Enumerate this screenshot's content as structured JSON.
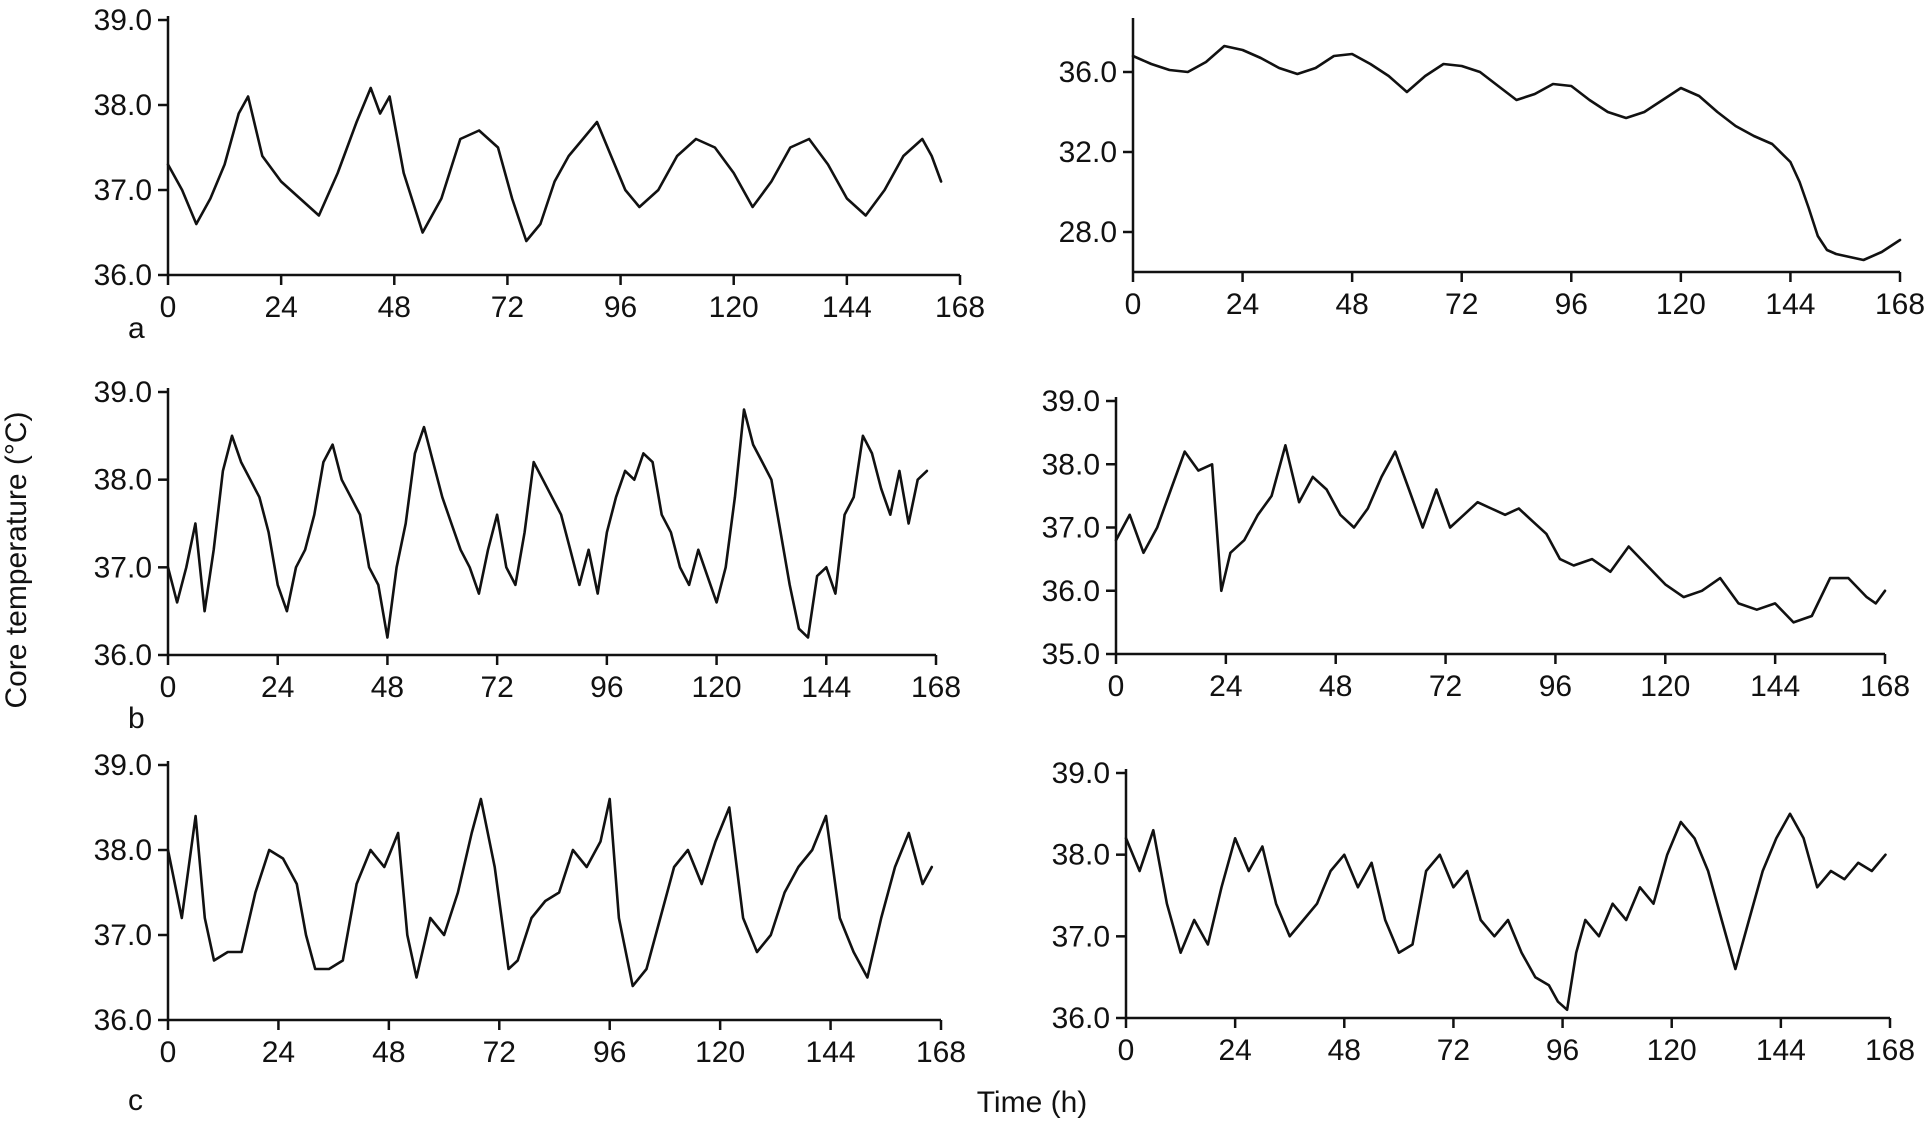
{
  "figure": {
    "ylabel": "Core temperature (°C)",
    "xlabel": "Time (h)",
    "row_labels": [
      "a",
      "b",
      "c"
    ]
  },
  "chart_data": [
    {
      "type": "line",
      "panel": "a-left",
      "xlim": [
        0,
        168
      ],
      "ylim": [
        36.0,
        39.0
      ],
      "xticks": [
        "0",
        "24",
        "48",
        "72",
        "96",
        "120",
        "144",
        "168"
      ],
      "yticks": [
        "36.0",
        "37.0",
        "38.0",
        "39.0"
      ],
      "series": [
        {
          "x": [
            0,
            3,
            6,
            9,
            12,
            15,
            17,
            20,
            24,
            28,
            32,
            36,
            40,
            43,
            45,
            47,
            50,
            54,
            58,
            62,
            66,
            70,
            73,
            76,
            79,
            82,
            85,
            88,
            91,
            94,
            97,
            100,
            104,
            108,
            112,
            116,
            120,
            124,
            128,
            132,
            136,
            140,
            144,
            148,
            152,
            156,
            160,
            162,
            164
          ],
          "y": [
            37.3,
            37.0,
            36.6,
            36.9,
            37.3,
            37.9,
            38.1,
            37.4,
            37.1,
            36.9,
            36.7,
            37.2,
            37.8,
            38.2,
            37.9,
            38.1,
            37.2,
            36.5,
            36.9,
            37.6,
            37.7,
            37.5,
            36.9,
            36.4,
            36.6,
            37.1,
            37.4,
            37.6,
            37.8,
            37.4,
            37.0,
            36.8,
            37.0,
            37.4,
            37.6,
            37.5,
            37.2,
            36.8,
            37.1,
            37.5,
            37.6,
            37.3,
            36.9,
            36.7,
            37.0,
            37.4,
            37.6,
            37.4,
            37.1
          ]
        }
      ]
    },
    {
      "type": "line",
      "panel": "a-right",
      "xlim": [
        0,
        168
      ],
      "ylim": [
        26.0,
        38.5
      ],
      "xticks": [
        "0",
        "24",
        "48",
        "72",
        "96",
        "120",
        "144",
        "168"
      ],
      "yticks": [
        "28.0",
        "32.0",
        "36.0"
      ],
      "series": [
        {
          "x": [
            0,
            4,
            8,
            12,
            16,
            20,
            24,
            28,
            32,
            36,
            40,
            44,
            48,
            52,
            56,
            60,
            64,
            68,
            72,
            76,
            80,
            84,
            88,
            92,
            96,
            100,
            104,
            108,
            112,
            116,
            120,
            124,
            128,
            132,
            136,
            140,
            144,
            146,
            148,
            150,
            152,
            154,
            156,
            160,
            164,
            168
          ],
          "y": [
            36.8,
            36.4,
            36.1,
            36.0,
            36.5,
            37.3,
            37.1,
            36.7,
            36.2,
            35.9,
            36.2,
            36.8,
            36.9,
            36.4,
            35.8,
            35.0,
            35.8,
            36.4,
            36.3,
            36.0,
            35.3,
            34.6,
            34.9,
            35.4,
            35.3,
            34.6,
            34.0,
            33.7,
            34.0,
            34.6,
            35.2,
            34.8,
            34.0,
            33.3,
            32.8,
            32.4,
            31.5,
            30.5,
            29.2,
            27.8,
            27.1,
            26.9,
            26.8,
            26.6,
            27.0,
            27.6
          ]
        }
      ]
    },
    {
      "type": "line",
      "panel": "b-left",
      "xlim": [
        0,
        168
      ],
      "ylim": [
        36.0,
        39.0
      ],
      "xticks": [
        "0",
        "24",
        "48",
        "72",
        "96",
        "120",
        "144",
        "168"
      ],
      "yticks": [
        "36.0",
        "37.0",
        "38.0",
        "39.0"
      ],
      "series": [
        {
          "x": [
            0,
            2,
            4,
            6,
            8,
            10,
            12,
            14,
            16,
            18,
            20,
            22,
            24,
            26,
            28,
            30,
            32,
            34,
            36,
            38,
            40,
            42,
            44,
            46,
            48,
            50,
            52,
            54,
            56,
            58,
            60,
            62,
            64,
            66,
            68,
            70,
            72,
            74,
            76,
            78,
            80,
            82,
            84,
            86,
            88,
            90,
            92,
            94,
            96,
            98,
            100,
            102,
            104,
            106,
            108,
            110,
            112,
            114,
            116,
            118,
            120,
            122,
            124,
            126,
            128,
            130,
            132,
            134,
            136,
            138,
            140,
            142,
            144,
            146,
            148,
            150,
            152,
            154,
            156,
            158,
            160,
            162,
            164,
            166
          ],
          "y": [
            37.0,
            36.6,
            37.0,
            37.5,
            36.5,
            37.2,
            38.1,
            38.5,
            38.2,
            38.0,
            37.8,
            37.4,
            36.8,
            36.5,
            37.0,
            37.2,
            37.6,
            38.2,
            38.4,
            38.0,
            37.8,
            37.6,
            37.0,
            36.8,
            36.2,
            37.0,
            37.5,
            38.3,
            38.6,
            38.2,
            37.8,
            37.5,
            37.2,
            37.0,
            36.7,
            37.2,
            37.6,
            37.0,
            36.8,
            37.4,
            38.2,
            38.0,
            37.8,
            37.6,
            37.2,
            36.8,
            37.2,
            36.7,
            37.4,
            37.8,
            38.1,
            38.0,
            38.3,
            38.2,
            37.6,
            37.4,
            37.0,
            36.8,
            37.2,
            36.9,
            36.6,
            37.0,
            37.8,
            38.8,
            38.4,
            38.2,
            38.0,
            37.4,
            36.8,
            36.3,
            36.2,
            36.9,
            37.0,
            36.7,
            37.6,
            37.8,
            38.5,
            38.3,
            37.9,
            37.6,
            38.1,
            37.5,
            38.0,
            38.1
          ]
        }
      ]
    },
    {
      "type": "line",
      "panel": "b-right",
      "xlim": [
        0,
        168
      ],
      "ylim": [
        35.0,
        39.0
      ],
      "xticks": [
        "0",
        "24",
        "48",
        "72",
        "96",
        "120",
        "144",
        "168"
      ],
      "yticks": [
        "35.0",
        "36.0",
        "37.0",
        "38.0",
        "39.0"
      ],
      "series": [
        {
          "x": [
            0,
            3,
            6,
            9,
            12,
            15,
            18,
            21,
            23,
            25,
            28,
            31,
            34,
            37,
            40,
            43,
            46,
            49,
            52,
            55,
            58,
            61,
            64,
            67,
            70,
            73,
            76,
            79,
            82,
            85,
            88,
            91,
            94,
            97,
            100,
            104,
            108,
            112,
            116,
            120,
            124,
            128,
            132,
            136,
            140,
            144,
            148,
            152,
            156,
            160,
            164,
            166,
            168
          ],
          "y": [
            36.8,
            37.2,
            36.6,
            37.0,
            37.6,
            38.2,
            37.9,
            38.0,
            36.0,
            36.6,
            36.8,
            37.2,
            37.5,
            38.3,
            37.4,
            37.8,
            37.6,
            37.2,
            37.0,
            37.3,
            37.8,
            38.2,
            37.6,
            37.0,
            37.6,
            37.0,
            37.2,
            37.4,
            37.3,
            37.2,
            37.3,
            37.1,
            36.9,
            36.5,
            36.4,
            36.5,
            36.3,
            36.7,
            36.4,
            36.1,
            35.9,
            36.0,
            36.2,
            35.8,
            35.7,
            35.8,
            35.5,
            35.6,
            36.2,
            36.2,
            35.9,
            35.8,
            36.0
          ]
        }
      ]
    },
    {
      "type": "line",
      "panel": "c-left",
      "xlim": [
        0,
        168
      ],
      "ylim": [
        36.0,
        39.0
      ],
      "xticks": [
        "0",
        "24",
        "48",
        "72",
        "96",
        "120",
        "144",
        "168"
      ],
      "yticks": [
        "36.0",
        "37.0",
        "38.0",
        "39.0"
      ],
      "series": [
        {
          "x": [
            0,
            3,
            6,
            8,
            10,
            13,
            16,
            19,
            22,
            25,
            28,
            30,
            32,
            35,
            38,
            41,
            44,
            47,
            50,
            52,
            54,
            57,
            60,
            63,
            66,
            68,
            71,
            74,
            76,
            79,
            82,
            85,
            88,
            91,
            94,
            96,
            98,
            101,
            104,
            107,
            110,
            113,
            116,
            119,
            122,
            125,
            128,
            131,
            134,
            137,
            140,
            143,
            146,
            149,
            152,
            155,
            158,
            161,
            164,
            166
          ],
          "y": [
            38.0,
            37.2,
            38.4,
            37.2,
            36.7,
            36.8,
            36.8,
            37.5,
            38.0,
            37.9,
            37.6,
            37.0,
            36.6,
            36.6,
            36.7,
            37.6,
            38.0,
            37.8,
            38.2,
            37.0,
            36.5,
            37.2,
            37.0,
            37.5,
            38.2,
            38.6,
            37.8,
            36.6,
            36.7,
            37.2,
            37.4,
            37.5,
            38.0,
            37.8,
            38.1,
            38.6,
            37.2,
            36.4,
            36.6,
            37.2,
            37.8,
            38.0,
            37.6,
            38.1,
            38.5,
            37.2,
            36.8,
            37.0,
            37.5,
            37.8,
            38.0,
            38.4,
            37.2,
            36.8,
            36.5,
            37.2,
            37.8,
            38.2,
            37.6,
            37.8
          ]
        }
      ]
    },
    {
      "type": "line",
      "panel": "c-right",
      "xlim": [
        0,
        168
      ],
      "ylim": [
        36.0,
        39.0
      ],
      "xticks": [
        "0",
        "24",
        "48",
        "72",
        "96",
        "120",
        "144",
        "168"
      ],
      "yticks": [
        "36.0",
        "37.0",
        "38.0",
        "39.0"
      ],
      "series": [
        {
          "x": [
            0,
            3,
            6,
            9,
            12,
            15,
            18,
            21,
            24,
            27,
            30,
            33,
            36,
            39,
            42,
            45,
            48,
            51,
            54,
            57,
            60,
            63,
            66,
            69,
            72,
            75,
            78,
            81,
            84,
            87,
            90,
            93,
            95,
            97,
            99,
            101,
            104,
            107,
            110,
            113,
            116,
            119,
            122,
            125,
            128,
            131,
            134,
            137,
            140,
            143,
            146,
            149,
            152,
            155,
            158,
            161,
            164,
            167
          ],
          "y": [
            38.2,
            37.8,
            38.3,
            37.4,
            36.8,
            37.2,
            36.9,
            37.6,
            38.2,
            37.8,
            38.1,
            37.4,
            37.0,
            37.2,
            37.4,
            37.8,
            38.0,
            37.6,
            37.9,
            37.2,
            36.8,
            36.9,
            37.8,
            38.0,
            37.6,
            37.8,
            37.2,
            37.0,
            37.2,
            36.8,
            36.5,
            36.4,
            36.2,
            36.1,
            36.8,
            37.2,
            37.0,
            37.4,
            37.2,
            37.6,
            37.4,
            38.0,
            38.4,
            38.2,
            37.8,
            37.2,
            36.6,
            37.2,
            37.8,
            38.2,
            38.5,
            38.2,
            37.6,
            37.8,
            37.7,
            37.9,
            37.8,
            38.0
          ]
        }
      ]
    }
  ]
}
